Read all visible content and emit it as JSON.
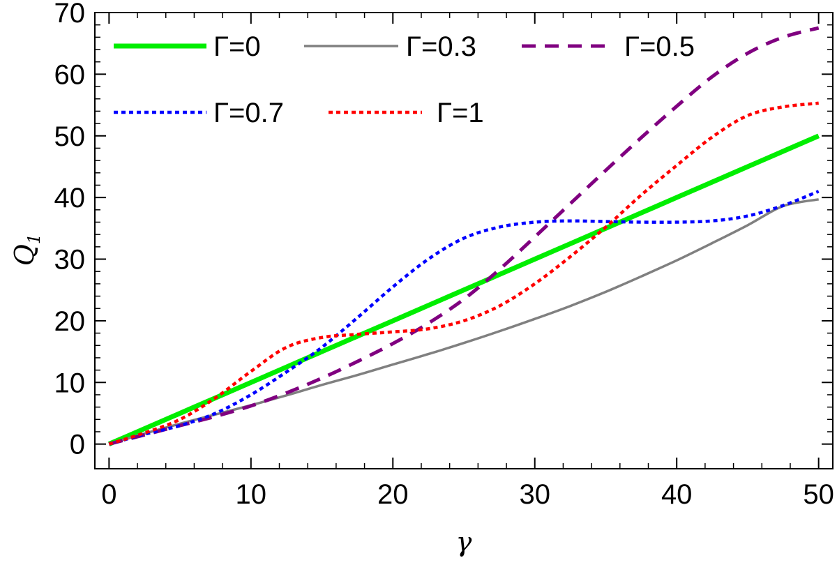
{
  "chart_data": {
    "type": "line",
    "title": "",
    "xlabel": "γ",
    "ylabel": "Q",
    "ylabel_subscript": "1",
    "xlim": [
      -1,
      51
    ],
    "ylim": [
      -4,
      70
    ],
    "x_ticks": [
      0,
      10,
      20,
      30,
      40,
      50
    ],
    "x_tick_labels": [
      "0",
      "10",
      "20",
      "30",
      "40",
      "50"
    ],
    "y_ticks": [
      0,
      10,
      20,
      30,
      40,
      50,
      60,
      70
    ],
    "y_tick_labels": [
      "0",
      "10",
      "20",
      "30",
      "40",
      "50",
      "60",
      "70"
    ],
    "x_minor_step": 2,
    "y_minor_step": 2,
    "grid": false,
    "legend_position": "top-left, inside",
    "x": [
      0,
      2.5,
      5,
      7.5,
      10,
      12.5,
      15,
      17.5,
      20,
      22.5,
      25,
      27.5,
      30,
      32.5,
      35,
      37.5,
      40,
      42.5,
      45,
      47.5,
      50
    ],
    "series": [
      {
        "name": "Γ=0",
        "color": "#00ee00",
        "style": "solid-thick",
        "values": [
          0,
          2.5,
          5,
          7.5,
          10,
          12.5,
          15,
          17.5,
          20,
          22.5,
          25,
          27.5,
          30,
          32.5,
          35,
          37.5,
          40,
          42.5,
          45,
          47.5,
          50
        ]
      },
      {
        "name": "Γ=0.3",
        "color": "#808080",
        "style": "solid",
        "values": [
          0,
          1.7,
          3.3,
          4.8,
          6.3,
          7.9,
          9.6,
          11.2,
          12.9,
          14.6,
          16.4,
          18.3,
          20.3,
          22.4,
          24.7,
          27.2,
          29.8,
          32.6,
          35.5,
          38.6,
          39.7
        ]
      },
      {
        "name": "Γ=0.5",
        "color": "#800080",
        "style": "dashed",
        "values": [
          0,
          1.5,
          3.0,
          4.5,
          6.2,
          8.3,
          10.7,
          13.4,
          16.3,
          19.6,
          23.5,
          28.3,
          33.6,
          39.0,
          44.4,
          49.7,
          54.8,
          59.6,
          63.4,
          66.0,
          67.5
        ]
      },
      {
        "name": "Γ=0.7",
        "color": "#0000ff",
        "style": "dotted",
        "values": [
          0,
          1.6,
          3.0,
          5.0,
          8.0,
          11.7,
          15.7,
          20.5,
          25.5,
          30.0,
          33.4,
          35.2,
          36.0,
          36.2,
          36.1,
          36.0,
          36.0,
          36.2,
          37.0,
          38.7,
          41.0
        ]
      },
      {
        "name": "Γ=1",
        "color": "#ff0000",
        "style": "dotted",
        "values": [
          0,
          1.8,
          4.0,
          7.5,
          11.8,
          15.7,
          17.3,
          17.8,
          18.2,
          18.7,
          20.0,
          22.4,
          26.0,
          30.4,
          35.2,
          40.4,
          45.2,
          49.8,
          53.3,
          54.7,
          55.3
        ]
      }
    ]
  }
}
